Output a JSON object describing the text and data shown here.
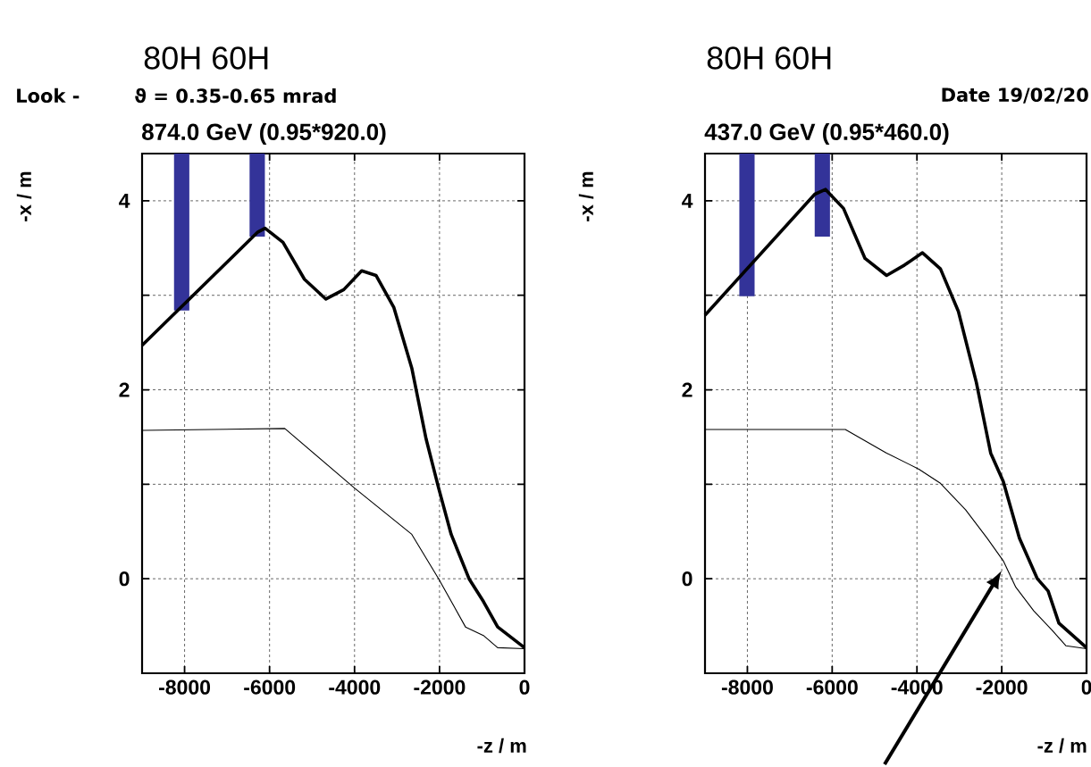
{
  "chart_data": [
    {
      "type": "line",
      "title": "874.0 GeV (0.95*920.0)",
      "xlabel": "-z / m",
      "ylabel": "-x / m",
      "annotations": [
        "80H 60H",
        "Look -",
        "ϑ = 0.35-0.65 mrad"
      ],
      "xlim": [
        -9000,
        0
      ],
      "ylim": [
        -1,
        4.5
      ],
      "xticks": [
        -8000,
        -6000,
        -4000,
        -2000,
        0
      ],
      "yticks": [
        0,
        2,
        4
      ],
      "grid": true,
      "series": [
        {
          "color": "#000000",
          "x": [
            -9000,
            -6274,
            -6105,
            -5684,
            -5179,
            -4674,
            -4253,
            -3832,
            -3495,
            -3074,
            -2653,
            -2316,
            -2021,
            -1726,
            -1305,
            -968,
            -632,
            0
          ],
          "values": [
            2.47,
            3.67,
            3.71,
            3.56,
            3.17,
            2.96,
            3.06,
            3.26,
            3.21,
            2.87,
            2.23,
            1.48,
            0.96,
            0.47,
            0,
            -0.24,
            -0.51,
            -0.73
          ]
        },
        {
          "color": "#000000",
          "x": [
            -9000,
            -5642,
            -4000,
            -2653,
            -2021,
            -1389,
            -968,
            -632,
            0
          ],
          "values": [
            1.57,
            1.59,
            0.96,
            0.47,
            0,
            -0.51,
            -0.6,
            -0.73,
            -0.74
          ]
        },
        {
          "type": "bar",
          "color": "#333399",
          "x": [
            -8068,
            -6290
          ],
          "base": [
            2.84,
            3.62
          ],
          "values": [
            1.66,
            0.88
          ]
        }
      ]
    },
    {
      "type": "line",
      "title": "437.0 GeV (0.95*460.0)",
      "xlabel": "-z / m",
      "ylabel": "-x / m",
      "annotations": [
        "80H 60H",
        "Date 19/02/20"
      ],
      "xlim": [
        -9000,
        0
      ],
      "ylim": [
        -1,
        4.5
      ],
      "xticks": [
        -8000,
        -6000,
        -4000,
        -2000,
        0
      ],
      "yticks": [
        0,
        2,
        4
      ],
      "grid": true,
      "series": [
        {
          "color": "#000000",
          "x": [
            -9000,
            -6410,
            -6156,
            -5733,
            -5225,
            -4716,
            -4293,
            -3870,
            -3446,
            -3023,
            -2600,
            -2261,
            -1964,
            -1583,
            -1160,
            -906,
            -652,
            0
          ],
          "values": [
            2.79,
            4.07,
            4.12,
            3.92,
            3.39,
            3.21,
            3.32,
            3.45,
            3.28,
            2.83,
            2.08,
            1.33,
            1.03,
            0.43,
            0,
            -0.13,
            -0.47,
            -0.73
          ]
        },
        {
          "color": "#000000",
          "x": [
            -9000,
            -5690,
            -4716,
            -3954,
            -3446,
            -2854,
            -2346,
            -1964,
            -1668,
            -1245,
            -821,
            -483,
            0
          ],
          "values": [
            1.58,
            1.58,
            1.33,
            1.16,
            1.01,
            0.73,
            0.43,
            0.19,
            -0.09,
            -0.34,
            -0.54,
            -0.71,
            -0.74
          ]
        },
        {
          "type": "bar",
          "color": "#333399",
          "x": [
            -8010,
            -6232
          ],
          "base": [
            2.99,
            3.62
          ],
          "values": [
            1.51,
            0.88
          ]
        }
      ]
    }
  ]
}
